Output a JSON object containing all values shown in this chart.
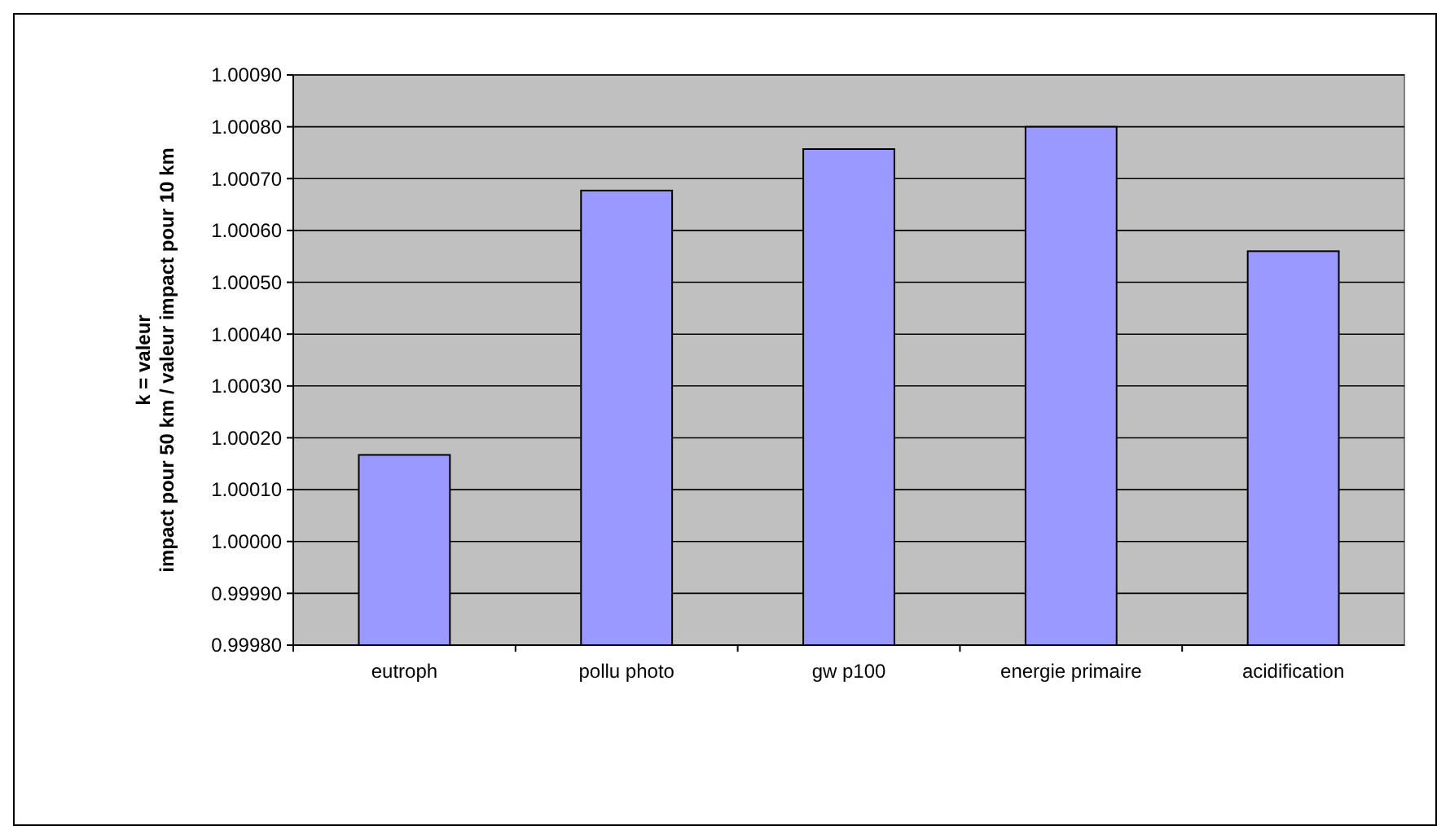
{
  "chart_data": {
    "type": "bar",
    "ylabel": "k = valeur\nimpact pour 50 km / valeur impact pour 10 km",
    "categories": [
      "eutroph",
      "pollu photo",
      "gw p100",
      "energie primaire",
      "acidification"
    ],
    "values": [
      1.000167,
      1.000677,
      1.000757,
      1.0008,
      1.00056
    ],
    "color": "#9999ff",
    "ylim": [
      0.9998,
      1.0009
    ],
    "yticks": [
      {
        "value": 0.9998,
        "label": "0.99980"
      },
      {
        "value": 0.9999,
        "label": "0.99990"
      },
      {
        "value": 1,
        "label": "1.00000"
      },
      {
        "value": 1.0001,
        "label": "1.00010"
      },
      {
        "value": 1.0002,
        "label": "1.00020"
      },
      {
        "value": 1.0003,
        "label": "1.00030"
      },
      {
        "value": 1.0004,
        "label": "1.00040"
      },
      {
        "value": 1.0005,
        "label": "1.00050"
      },
      {
        "value": 1.0006,
        "label": "1.00060"
      },
      {
        "value": 1.0007,
        "label": "1.00070"
      },
      {
        "value": 1.0008,
        "label": "1.00080"
      },
      {
        "value": 1.0009,
        "label": "1.00090"
      }
    ],
    "grid": "y"
  }
}
